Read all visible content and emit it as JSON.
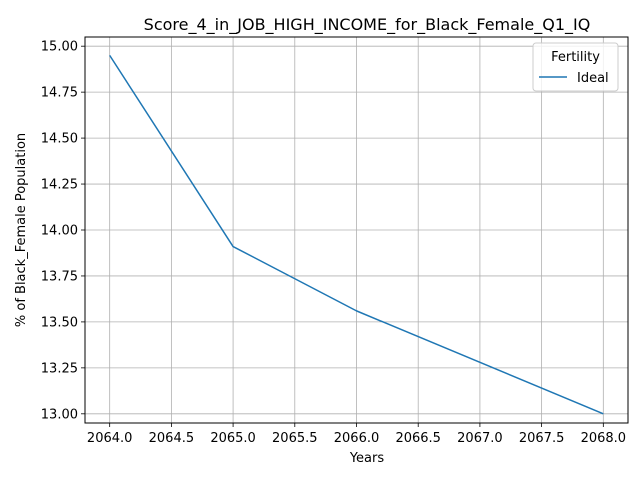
{
  "chart_data": {
    "type": "line",
    "title": "Score_4_in_JOB_HIGH_INCOME_for_Black_Female_Q1_IQ",
    "xlabel": "Years",
    "ylabel": "% of Black_Female Population",
    "xlim": [
      2063.8,
      2068.2
    ],
    "ylim": [
      12.95,
      15.05
    ],
    "xticks": [
      2064.0,
      2064.5,
      2065.0,
      2065.5,
      2066.0,
      2066.5,
      2067.0,
      2067.5,
      2068.0
    ],
    "xtick_labels": [
      "2064.0",
      "2064.5",
      "2065.0",
      "2065.5",
      "2066.0",
      "2066.5",
      "2067.0",
      "2067.5",
      "2068.0"
    ],
    "yticks": [
      13.0,
      13.25,
      13.5,
      13.75,
      14.0,
      14.25,
      14.5,
      14.75,
      15.0
    ],
    "ytick_labels": [
      "13.00",
      "13.25",
      "13.50",
      "13.75",
      "14.00",
      "14.25",
      "14.50",
      "14.75",
      "15.00"
    ],
    "grid": true,
    "legend": {
      "title": "Fertility",
      "placement": "top-right"
    },
    "series": [
      {
        "name": "Ideal",
        "color": "#1f77b4",
        "x": [
          2064,
          2065,
          2066,
          2067,
          2068
        ],
        "values": [
          14.95,
          13.91,
          13.56,
          13.28,
          13.0
        ]
      }
    ]
  }
}
